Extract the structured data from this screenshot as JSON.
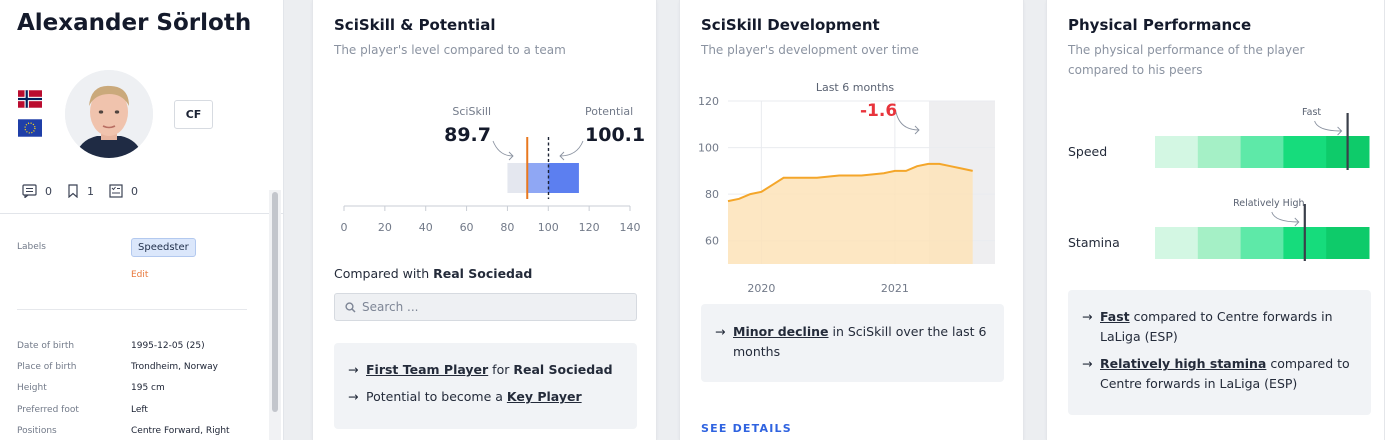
{
  "player": {
    "name": "Alexander Sörloth",
    "position": "CF",
    "counts": {
      "comments": "0",
      "bookmarks": "1",
      "reports": "0"
    }
  },
  "profile": {
    "labels_title": "Labels",
    "label_chip": "Speedster",
    "edit": "Edit",
    "fields": [
      {
        "label": "Date of birth",
        "value": "1995-12-05 (25)"
      },
      {
        "label": "Place of birth",
        "value": "Trondheim, Norway"
      },
      {
        "label": "Height",
        "value": "195 cm"
      },
      {
        "label": "Preferred foot",
        "value": "Left"
      },
      {
        "label": "Positions",
        "value": "Centre Forward, Right"
      }
    ]
  },
  "potential_card": {
    "title": "SciSkill & Potential",
    "subtitle": "The player's level compared to a team",
    "sciskill_label": "SciSkill",
    "sciskill_value": "89.7",
    "potential_label": "Potential",
    "potential_value": "100.1",
    "compared_prefix": "Compared with ",
    "compared_team": "Real Sociedad",
    "search_placeholder": "Search ...",
    "callout": {
      "line1_link": "First Team Player",
      "line1_mid": " for ",
      "line1_team": "Real Sociedad",
      "line2_prefix": "Potential to become a ",
      "line2_link": "Key Player"
    }
  },
  "development_card": {
    "title": "SciSkill Development",
    "subtitle": "The player's development over time",
    "window_label": "Last 6 months",
    "change_value": "-1.6",
    "callout_link": "Minor decline",
    "callout_rest": " in SciSkill over the last 6 months",
    "see_details": "SEE DETAILS"
  },
  "physical_card": {
    "title": "Physical Performance",
    "subtitle": "The physical performance of the player compared to his peers",
    "metrics": [
      {
        "label": "Speed",
        "marker_label": "Fast",
        "level": 0.9
      },
      {
        "label": "Stamina",
        "marker_label": "Relatively High",
        "level": 0.7
      }
    ],
    "callout": {
      "line1_link": "Fast",
      "line1_rest": " compared to Centre forwards in LaLiga (ESP)",
      "line2_link": "Relatively high stamina",
      "line2_rest": " compared to Centre forwards in LaLiga (ESP)"
    }
  },
  "colors": {
    "orange": "#e8781f",
    "blue": "#5c7ff0",
    "red": "#e8343c",
    "link_blue": "#2f63e0",
    "green_scale": [
      "#d3f7e3",
      "#a5f0c6",
      "#5ee9a8",
      "#16dc7c",
      "#0ecb6a"
    ]
  },
  "chart_data": [
    {
      "type": "bar",
      "title": "",
      "x_ticks": [
        "0",
        "20",
        "40",
        "60",
        "80",
        "100",
        "120",
        "140"
      ],
      "xlim": [
        0,
        140
      ],
      "team_range": [
        80,
        115
      ],
      "sciskill": 89.7,
      "potential": 100.1
    },
    {
      "type": "area",
      "x_ticks": [
        "2020",
        "2021"
      ],
      "y_ticks": [
        "60",
        "80",
        "100",
        "120"
      ],
      "ylim": [
        50,
        120
      ],
      "x": [
        "2019-10",
        "2019-11",
        "2019-12",
        "2020-01",
        "2020-02",
        "2020-03",
        "2020-04",
        "2020-06",
        "2020-08",
        "2020-10",
        "2020-12",
        "2021-01",
        "2021-02",
        "2021-03",
        "2021-04",
        "2021-05",
        "2021-06",
        "2021-07",
        "2021-08"
      ],
      "y": [
        77,
        78,
        80,
        81,
        84,
        87,
        87,
        87,
        88,
        88,
        89,
        90,
        90,
        92,
        93,
        93,
        92,
        91,
        90
      ],
      "highlight": "Last 6 months",
      "annotation": "-1.6"
    }
  ]
}
